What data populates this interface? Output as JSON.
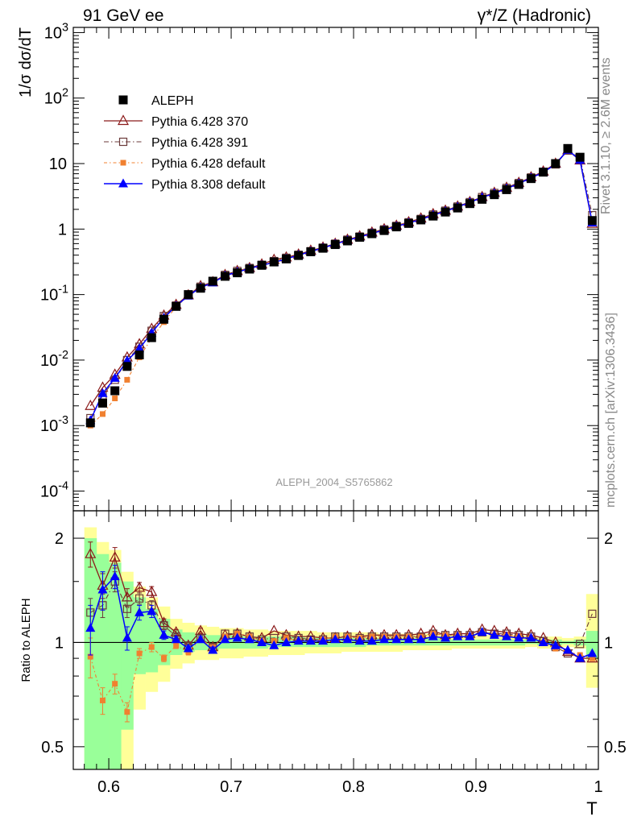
{
  "header": {
    "left_title": "91 GeV ee",
    "right_title": "γ*/Z (Hadronic)"
  },
  "side_text": {
    "rivet": "Rivet 3.1.10, ≥ 2.6M events",
    "mcplots": "mcplots.cern.ch [arXiv:1306.3436]"
  },
  "watermark": "ALEPH_2004_S5765862",
  "chart_data": [
    {
      "type": "scatter",
      "title": "",
      "xlabel": "T",
      "ylabel": "1/σ dσ/dT",
      "yscale": "log",
      "xlim": [
        0.571,
        1.0
      ],
      "ylim": [
        5e-05,
        1200
      ],
      "y_tick_labels": [
        "10^-4",
        "10^-3",
        "10^-2",
        "10^-1",
        "1",
        "10",
        "10^2",
        "10^3"
      ],
      "legend_position": "top-left",
      "x": [
        0.585,
        0.595,
        0.605,
        0.615,
        0.625,
        0.635,
        0.645,
        0.655,
        0.665,
        0.675,
        0.685,
        0.695,
        0.705,
        0.715,
        0.725,
        0.735,
        0.745,
        0.755,
        0.765,
        0.775,
        0.785,
        0.795,
        0.805,
        0.815,
        0.825,
        0.835,
        0.845,
        0.855,
        0.865,
        0.875,
        0.885,
        0.895,
        0.905,
        0.915,
        0.925,
        0.935,
        0.945,
        0.955,
        0.965,
        0.975,
        0.985,
        0.995
      ],
      "series": [
        {
          "name": "ALEPH",
          "color": "#000000",
          "marker": "filled-square",
          "values": [
            0.0011,
            0.0022,
            0.0034,
            0.008,
            0.012,
            0.022,
            0.042,
            0.066,
            0.1,
            0.125,
            0.16,
            0.19,
            0.215,
            0.245,
            0.28,
            0.315,
            0.35,
            0.395,
            0.45,
            0.51,
            0.58,
            0.66,
            0.75,
            0.85,
            0.95,
            1.08,
            1.22,
            1.38,
            1.58,
            1.82,
            2.1,
            2.45,
            2.85,
            3.35,
            4.0,
            4.8,
            5.9,
            7.4,
            10.0,
            17.0,
            12.5,
            1.35
          ]
        },
        {
          "name": "Pythia 6.428 370",
          "color": "#8b1a1a",
          "marker": "open-triangle",
          "values": [
            0.002,
            0.0038,
            0.006,
            0.011,
            0.0175,
            0.03,
            0.048,
            0.07,
            0.098,
            0.135,
            0.155,
            0.2,
            0.23,
            0.255,
            0.29,
            0.34,
            0.37,
            0.41,
            0.47,
            0.525,
            0.6,
            0.69,
            0.78,
            0.89,
            1.0,
            1.13,
            1.28,
            1.46,
            1.7,
            1.92,
            2.22,
            2.6,
            3.1,
            3.6,
            4.3,
            5.1,
            6.2,
            7.6,
            10.0,
            16.0,
            11.2,
            1.21
          ]
        },
        {
          "name": "Pythia 6.428 391",
          "color": "#6b3a3a",
          "marker": "open-square",
          "values": [
            0.0013,
            0.0029,
            0.005,
            0.01,
            0.016,
            0.028,
            0.047,
            0.068,
            0.097,
            0.132,
            0.155,
            0.2,
            0.23,
            0.255,
            0.285,
            0.325,
            0.365,
            0.405,
            0.46,
            0.52,
            0.6,
            0.69,
            0.77,
            0.88,
            0.99,
            1.12,
            1.27,
            1.43,
            1.67,
            1.91,
            2.21,
            2.58,
            3.08,
            3.56,
            4.25,
            5.05,
            6.15,
            7.45,
            9.7,
            15.8,
            12.4,
            1.63
          ]
        },
        {
          "name": "Pythia 6.428 default",
          "color": "#f08030",
          "marker": "filled-square-small",
          "values": [
            0.001,
            0.0015,
            0.0026,
            0.005,
            0.011,
            0.0215,
            0.038,
            0.065,
            0.094,
            0.128,
            0.156,
            0.198,
            0.228,
            0.255,
            0.282,
            0.318,
            0.36,
            0.4,
            0.455,
            0.52,
            0.6,
            0.69,
            0.77,
            0.88,
            0.99,
            1.12,
            1.27,
            1.43,
            1.67,
            1.91,
            2.21,
            2.56,
            3.06,
            3.52,
            4.2,
            5.0,
            6.1,
            7.4,
            9.6,
            15.9,
            11.5,
            1.22
          ]
        },
        {
          "name": "Pythia 8.308 default",
          "color": "#0000ff",
          "marker": "filled-triangle",
          "values": [
            0.0012,
            0.0031,
            0.0053,
            0.0098,
            0.015,
            0.026,
            0.044,
            0.067,
            0.096,
            0.128,
            0.152,
            0.194,
            0.221,
            0.25,
            0.28,
            0.31,
            0.35,
            0.4,
            0.455,
            0.515,
            0.59,
            0.675,
            0.755,
            0.86,
            0.965,
            1.1,
            1.24,
            1.4,
            1.64,
            1.87,
            2.18,
            2.55,
            3.05,
            3.5,
            4.15,
            4.95,
            6.05,
            7.35,
            9.8,
            16.1,
            11.3,
            1.25
          ]
        }
      ]
    },
    {
      "type": "scatter",
      "title": "",
      "xlabel": "T",
      "ylabel": "Ratio to ALEPH",
      "yscale": "log",
      "xlim": [
        0.571,
        1.0
      ],
      "ylim": [
        0.43,
        2.4
      ],
      "x_tick_labels": [
        "0.6",
        "0.7",
        "0.8",
        "0.9",
        "1"
      ],
      "y_tick_labels": [
        "0.5",
        "1",
        "2"
      ],
      "reference_line": 1,
      "bands": {
        "yellow": {
          "color": "#ffff99",
          "lower": [
            0.2,
            0.2,
            0.2,
            0.3,
            0.64,
            0.72,
            0.77,
            0.84,
            0.87,
            0.89,
            0.89,
            0.9,
            0.9,
            0.91,
            0.91,
            0.92,
            0.92,
            0.92,
            0.93,
            0.93,
            0.93,
            0.94,
            0.94,
            0.94,
            0.94,
            0.94,
            0.95,
            0.95,
            0.95,
            0.95,
            0.96,
            0.96,
            0.96,
            0.96,
            0.96,
            0.96,
            0.97,
            0.96,
            0.96,
            0.97,
            0.96,
            0.74
          ],
          "upper": [
            2.15,
            1.95,
            1.85,
            1.6,
            1.45,
            1.35,
            1.27,
            1.17,
            1.14,
            1.12,
            1.11,
            1.1,
            1.1,
            1.09,
            1.09,
            1.08,
            1.08,
            1.08,
            1.08,
            1.07,
            1.07,
            1.07,
            1.07,
            1.07,
            1.06,
            1.06,
            1.06,
            1.06,
            1.06,
            1.05,
            1.05,
            1.05,
            1.05,
            1.05,
            1.05,
            1.05,
            1.04,
            1.04,
            1.04,
            1.03,
            1.04,
            1.38
          ]
        },
        "green": {
          "color": "#99ff99",
          "lower": [
            0.2,
            0.3,
            0.33,
            0.56,
            0.81,
            0.82,
            0.86,
            0.92,
            0.94,
            0.95,
            0.95,
            0.96,
            0.96,
            0.96,
            0.96,
            0.97,
            0.97,
            0.97,
            0.97,
            0.97,
            0.97,
            0.97,
            0.97,
            0.98,
            0.98,
            0.98,
            0.98,
            0.98,
            0.98,
            0.98,
            0.98,
            0.98,
            0.98,
            0.98,
            0.98,
            0.98,
            0.99,
            0.98,
            0.98,
            0.99,
            0.98,
            0.9
          ],
          "upper": [
            2.0,
            1.8,
            1.7,
            1.5,
            1.35,
            1.25,
            1.17,
            1.09,
            1.07,
            1.06,
            1.05,
            1.05,
            1.05,
            1.04,
            1.04,
            1.04,
            1.04,
            1.04,
            1.03,
            1.03,
            1.03,
            1.03,
            1.03,
            1.03,
            1.03,
            1.03,
            1.03,
            1.03,
            1.03,
            1.02,
            1.02,
            1.02,
            1.02,
            1.02,
            1.02,
            1.02,
            1.02,
            1.02,
            1.02,
            1.01,
            1.02,
            1.08
          ]
        }
      },
      "x": [
        0.585,
        0.595,
        0.605,
        0.615,
        0.625,
        0.635,
        0.645,
        0.655,
        0.665,
        0.675,
        0.685,
        0.695,
        0.705,
        0.715,
        0.725,
        0.735,
        0.745,
        0.755,
        0.765,
        0.775,
        0.785,
        0.795,
        0.805,
        0.815,
        0.825,
        0.835,
        0.845,
        0.855,
        0.865,
        0.875,
        0.885,
        0.895,
        0.905,
        0.915,
        0.925,
        0.935,
        0.945,
        0.955,
        0.965,
        0.975,
        0.985,
        0.995
      ],
      "series": [
        {
          "name": "Pythia 6.428 370",
          "color": "#8b1a1a",
          "marker": "open-triangle",
          "values": [
            1.8,
            1.46,
            1.76,
            1.35,
            1.44,
            1.4,
            1.14,
            1.07,
            0.98,
            1.08,
            0.97,
            1.05,
            1.06,
            1.04,
            1.03,
            1.08,
            1.05,
            1.04,
            1.04,
            1.03,
            1.03,
            1.04,
            1.04,
            1.05,
            1.05,
            1.05,
            1.05,
            1.06,
            1.08,
            1.05,
            1.06,
            1.06,
            1.09,
            1.08,
            1.07,
            1.06,
            1.05,
            1.03,
            1.0,
            0.94,
            0.9,
            0.9
          ],
          "errors": [
            0.15,
            0.12,
            0.12,
            0.08,
            0.05,
            0.05,
            0.03,
            0.02,
            0.02,
            0.02,
            0.02,
            0.01,
            0.01,
            0.01,
            0.01,
            0.01,
            0.01,
            0.01,
            0.01,
            0.01,
            0.01,
            0.01,
            0.01,
            0.01,
            0.01,
            0.01,
            0.01,
            0.01,
            0.01,
            0.01,
            0.01,
            0.01,
            0.01,
            0.01,
            0.01,
            0.01,
            0.01,
            0.01,
            0.01,
            0.01,
            0.01,
            0.01
          ]
        },
        {
          "name": "Pythia 6.428 391",
          "color": "#6b3a3a",
          "marker": "open-square",
          "values": [
            1.22,
            1.28,
            1.5,
            1.25,
            1.34,
            1.28,
            1.12,
            1.04,
            0.98,
            1.03,
            0.97,
            1.06,
            1.06,
            1.04,
            1.02,
            1.03,
            1.04,
            1.03,
            1.02,
            1.02,
            1.04,
            1.04,
            1.03,
            1.04,
            1.04,
            1.04,
            1.04,
            1.04,
            1.06,
            1.05,
            1.05,
            1.05,
            1.07,
            1.06,
            1.06,
            1.05,
            1.04,
            1.01,
            0.97,
            0.93,
            0.99,
            1.21
          ],
          "errors": [
            0.12,
            0.1,
            0.1,
            0.07,
            0.05,
            0.04,
            0.03,
            0.02,
            0.02,
            0.02,
            0.02,
            0.01,
            0.01,
            0.01,
            0.01,
            0.01,
            0.01,
            0.01,
            0.01,
            0.01,
            0.01,
            0.01,
            0.01,
            0.01,
            0.01,
            0.01,
            0.01,
            0.01,
            0.01,
            0.01,
            0.01,
            0.01,
            0.01,
            0.01,
            0.01,
            0.01,
            0.01,
            0.01,
            0.01,
            0.01,
            0.01,
            0.01
          ]
        },
        {
          "name": "Pythia 6.428 default",
          "color": "#f08030",
          "marker": "filled-square-small",
          "values": [
            0.91,
            0.68,
            0.76,
            0.63,
            0.93,
            0.97,
            0.9,
            0.98,
            0.94,
            1.02,
            0.97,
            1.04,
            1.06,
            1.04,
            1.01,
            1.01,
            1.03,
            1.01,
            1.01,
            1.02,
            1.04,
            1.04,
            1.03,
            1.04,
            1.04,
            1.04,
            1.04,
            1.04,
            1.06,
            1.05,
            1.05,
            1.04,
            1.07,
            1.05,
            1.05,
            1.04,
            1.03,
            1.0,
            0.96,
            0.94,
            0.92,
            0.9
          ],
          "errors": [
            0.12,
            0.06,
            0.05,
            0.04,
            0.03,
            0.03,
            0.02,
            0.02,
            0.02,
            0.02,
            0.01,
            0.01,
            0.01,
            0.01,
            0.01,
            0.01,
            0.01,
            0.01,
            0.01,
            0.01,
            0.01,
            0.01,
            0.01,
            0.01,
            0.01,
            0.01,
            0.01,
            0.01,
            0.01,
            0.01,
            0.01,
            0.01,
            0.01,
            0.01,
            0.01,
            0.01,
            0.01,
            0.01,
            0.01,
            0.01,
            0.01,
            0.01
          ]
        },
        {
          "name": "Pythia 8.308 default",
          "color": "#0000ff",
          "marker": "filled-triangle",
          "values": [
            1.1,
            1.42,
            1.55,
            1.03,
            1.22,
            1.23,
            1.05,
            1.02,
            0.96,
            1.02,
            0.95,
            1.02,
            1.03,
            1.02,
            1.0,
            0.98,
            1.0,
            1.01,
            1.01,
            1.01,
            1.02,
            1.02,
            1.01,
            1.01,
            1.02,
            1.02,
            1.02,
            1.02,
            1.04,
            1.03,
            1.04,
            1.04,
            1.07,
            1.05,
            1.04,
            1.03,
            1.03,
            1.0,
            0.98,
            0.95,
            0.9,
            0.93
          ],
          "errors": [
            0.18,
            0.18,
            0.12,
            0.08,
            0.06,
            0.05,
            0.03,
            0.02,
            0.02,
            0.02,
            0.02,
            0.01,
            0.01,
            0.01,
            0.01,
            0.01,
            0.01,
            0.01,
            0.01,
            0.01,
            0.01,
            0.01,
            0.01,
            0.01,
            0.01,
            0.01,
            0.01,
            0.01,
            0.01,
            0.01,
            0.01,
            0.01,
            0.01,
            0.01,
            0.01,
            0.01,
            0.01,
            0.01,
            0.01,
            0.01,
            0.01,
            0.01
          ]
        }
      ]
    }
  ]
}
